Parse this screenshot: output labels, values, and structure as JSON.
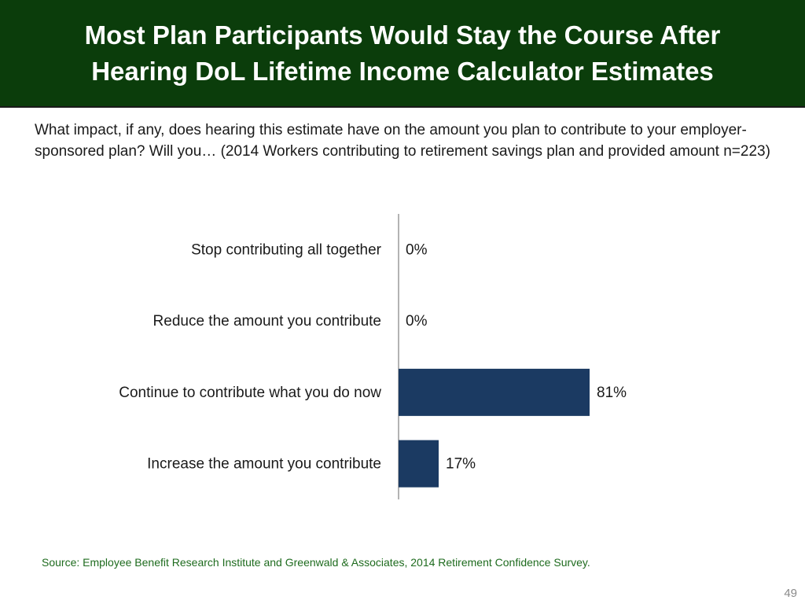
{
  "slide": {
    "title": "Most Plan Participants Would Stay the Course After Hearing DoL Lifetime Income Calculator Estimates",
    "question": "What impact, if any, does hearing this estimate have on the amount you plan to contribute to your employer-sponsored plan? Will you… (2014 Workers contributing to retirement savings plan and provided amount n=223)",
    "source": "Source:  Employee Benefit Research Institute and Greenwald & Associates, 2014 Retirement Confidence Survey.",
    "page_number": "49",
    "colors": {
      "title_bar": "#0b3d0b",
      "bar": "#1b3a62",
      "source_text": "#1e6b1e"
    }
  },
  "chart_data": {
    "type": "bar",
    "orientation": "horizontal",
    "categories": [
      "Stop contributing all together",
      "Reduce the amount you contribute",
      "Continue to contribute what you do now",
      "Increase the amount you contribute"
    ],
    "values": [
      0,
      0,
      81,
      17
    ],
    "value_labels": [
      "0%",
      "0%",
      "81%",
      "17%"
    ],
    "xlim": [
      0,
      100
    ],
    "grid": false,
    "legend": "none"
  }
}
